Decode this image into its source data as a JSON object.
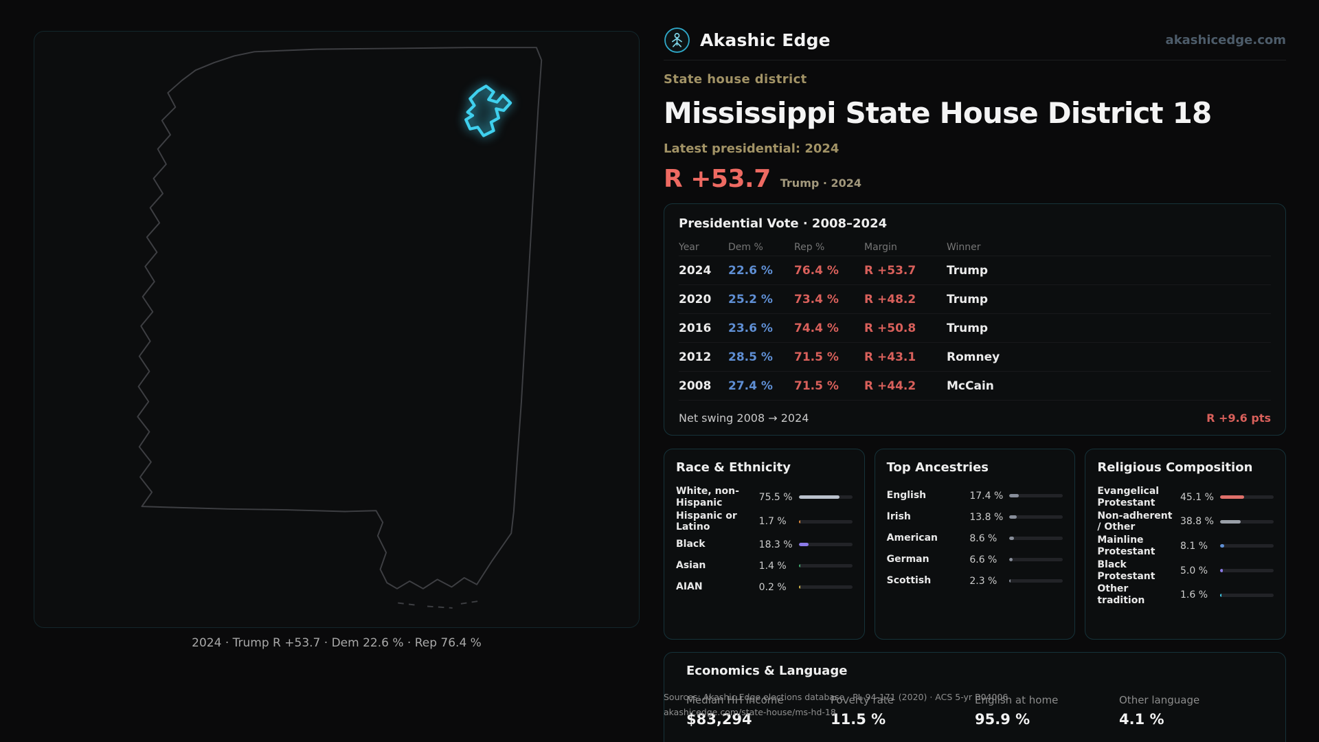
{
  "meta": {
    "brand": "Akashic Edge",
    "domain": "akashicedge.com",
    "icons": {
      "logo": "akashic-edge-circle-logo"
    }
  },
  "theme": {
    "accent_cyan": "#3fd0ee",
    "rep_red": "#d9605b",
    "dem_blue": "#5f8fd4",
    "gold": "#a29366"
  },
  "header": {
    "kicker": "State house district",
    "title": "Mississippi State House District 18",
    "latest_label": "Latest presidential: 2024",
    "headline_margin": "R +53.7",
    "headline_context": "Trump · 2024"
  },
  "map": {
    "caption": "2024 · Trump R +53.7 · Dem 22.6 % · Rep 76.4 %"
  },
  "presidential": {
    "title": "Presidential Vote · 2008–2024",
    "columns": [
      "Year",
      "Dem %",
      "Rep %",
      "Margin",
      "Winner"
    ],
    "rows": [
      {
        "year": "2024",
        "dem": "22.6 %",
        "rep": "76.4 %",
        "margin": "R +53.7",
        "winner": "Trump"
      },
      {
        "year": "2020",
        "dem": "25.2 %",
        "rep": "73.4 %",
        "margin": "R +48.2",
        "winner": "Trump"
      },
      {
        "year": "2016",
        "dem": "23.6 %",
        "rep": "74.4 %",
        "margin": "R +50.8",
        "winner": "Trump"
      },
      {
        "year": "2012",
        "dem": "28.5 %",
        "rep": "71.5 %",
        "margin": "R +43.1",
        "winner": "Romney"
      },
      {
        "year": "2008",
        "dem": "27.4 %",
        "rep": "71.5 %",
        "margin": "R +44.2",
        "winner": "McCain"
      }
    ],
    "net_swing_label": "Net swing 2008 → 2024",
    "net_swing_value": "R +9.6 pts"
  },
  "demographics": {
    "race": {
      "title": "Race & Ethnicity",
      "rows": [
        {
          "label": "White, non-Hispanic",
          "value": "75.5 %",
          "pct": 75.5,
          "color": "#bac1cc"
        },
        {
          "label": "Hispanic or Latino",
          "value": "1.7 %",
          "pct": 1.7,
          "color": "#e08b3d"
        },
        {
          "label": "Black",
          "value": "18.3 %",
          "pct": 18.3,
          "color": "#8b7ae8"
        },
        {
          "label": "Asian",
          "value": "1.4 %",
          "pct": 1.4,
          "color": "#3fa96f"
        },
        {
          "label": "AIAN",
          "value": "0.2 %",
          "pct": 0.2,
          "color": "#d4b84a"
        }
      ]
    },
    "ancestries": {
      "title": "Top Ancestries",
      "rows": [
        {
          "label": "English",
          "value": "17.4 %",
          "pct": 17.4,
          "color": "#878d99"
        },
        {
          "label": "Irish",
          "value": "13.8 %",
          "pct": 13.8,
          "color": "#878d99"
        },
        {
          "label": "American",
          "value": "8.6 %",
          "pct": 8.6,
          "color": "#878d99"
        },
        {
          "label": "German",
          "value": "6.6 %",
          "pct": 6.6,
          "color": "#878d99"
        },
        {
          "label": "Scottish",
          "value": "2.3 %",
          "pct": 2.3,
          "color": "#878d99"
        }
      ]
    },
    "religion": {
      "title": "Religious Composition",
      "rows": [
        {
          "label": "Evangelical Protestant",
          "value": "45.1 %",
          "pct": 45.1,
          "color": "#e0706a"
        },
        {
          "label": "Non-adherent / Other",
          "value": "38.8 %",
          "pct": 38.8,
          "color": "#9aa0a8"
        },
        {
          "label": "Mainline Protestant",
          "value": "8.1 %",
          "pct": 8.1,
          "color": "#5f8fd4"
        },
        {
          "label": "Black Protestant",
          "value": "5.0 %",
          "pct": 5.0,
          "color": "#8b7ae8"
        },
        {
          "label": "Other tradition",
          "value": "1.6 %",
          "pct": 1.6,
          "color": "#3fd0ee"
        }
      ]
    }
  },
  "economics": {
    "title": "Economics & Language",
    "items": [
      {
        "label": "Median HH income",
        "value": "$83,294"
      },
      {
        "label": "Poverty rate",
        "value": "11.5 %"
      },
      {
        "label": "English at home",
        "value": "95.9 %"
      },
      {
        "label": "Other language",
        "value": "4.1 %"
      }
    ]
  },
  "sources": {
    "line1": "Sources: Akashic Edge elections database · PL 94-171 (2020) · ACS 5-yr B04006",
    "line2": "akashicedge.com/state-house/ms-hd-18"
  }
}
